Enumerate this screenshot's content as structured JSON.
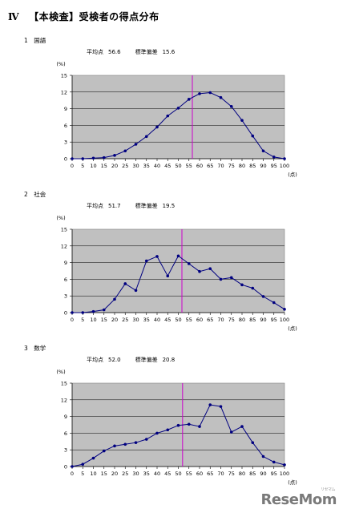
{
  "page": {
    "heading_num": "Ⅳ",
    "heading_text": "【本検査】受検者の得点分布",
    "watermark": "ReseMom",
    "watermark_small": "リセマム"
  },
  "sections": [
    {
      "title": "1　国語",
      "mean_label": "平均点",
      "mean": "56.6",
      "sd_label": "標準偏差",
      "sd": "15.6"
    },
    {
      "title": "2　社会",
      "mean_label": "平均点",
      "mean": "51.7",
      "sd_label": "標準偏差",
      "sd": "19.5"
    },
    {
      "title": "3　数学",
      "mean_label": "平均点",
      "mean": "52.0",
      "sd_label": "標準偏差",
      "sd": "20.8"
    }
  ],
  "chart_data": [
    {
      "type": "line",
      "title": "",
      "ylabel": "(%)",
      "xlabel": "(点)",
      "x": [
        0,
        5,
        10,
        15,
        20,
        25,
        30,
        35,
        40,
        45,
        50,
        55,
        60,
        65,
        70,
        75,
        80,
        85,
        90,
        95,
        100
      ],
      "values": [
        0,
        0,
        0.1,
        0.2,
        0.6,
        1.4,
        2.6,
        4.0,
        5.7,
        7.7,
        9.1,
        10.7,
        11.7,
        11.9,
        11.0,
        9.4,
        6.9,
        4.1,
        1.4,
        0.3,
        0
      ],
      "ylim": [
        0,
        15
      ],
      "yticks": [
        0,
        3,
        6,
        9,
        12,
        15
      ],
      "mean_line": 56.6,
      "grid": true,
      "line_color": "#000080",
      "mean_line_color": "#cc00cc",
      "plot_bg": "#c0c0c0"
    },
    {
      "type": "line",
      "title": "",
      "ylabel": "(%)",
      "xlabel": "(点)",
      "x": [
        0,
        5,
        10,
        15,
        20,
        25,
        30,
        35,
        40,
        45,
        50,
        55,
        60,
        65,
        70,
        75,
        80,
        85,
        90,
        95,
        100
      ],
      "values": [
        0,
        0,
        0.2,
        0.5,
        2.4,
        5.2,
        4.0,
        9.3,
        10.1,
        6.6,
        10.2,
        8.8,
        7.4,
        7.9,
        6.0,
        6.3,
        5.0,
        4.4,
        2.9,
        1.8,
        0.6
      ],
      "ylim": [
        0,
        15
      ],
      "yticks": [
        0,
        3,
        6,
        9,
        12,
        15
      ],
      "mean_line": 51.7,
      "grid": true,
      "line_color": "#000080",
      "mean_line_color": "#cc00cc",
      "plot_bg": "#c0c0c0"
    },
    {
      "type": "line",
      "title": "",
      "ylabel": "(%)",
      "xlabel": "(点)",
      "x": [
        0,
        5,
        10,
        15,
        20,
        25,
        30,
        35,
        40,
        45,
        50,
        55,
        60,
        65,
        70,
        75,
        80,
        85,
        90,
        95,
        100
      ],
      "values": [
        0,
        0.4,
        1.5,
        2.8,
        3.7,
        4.0,
        4.3,
        4.9,
        6.0,
        6.6,
        7.4,
        7.6,
        7.2,
        11.1,
        10.8,
        6.2,
        7.2,
        4.3,
        1.8,
        0.8,
        0.3
      ],
      "ylim": [
        0,
        15
      ],
      "yticks": [
        0,
        3,
        6,
        9,
        12,
        15
      ],
      "mean_line": 52.0,
      "grid": true,
      "line_color": "#000080",
      "mean_line_color": "#cc00cc",
      "plot_bg": "#c0c0c0"
    }
  ]
}
